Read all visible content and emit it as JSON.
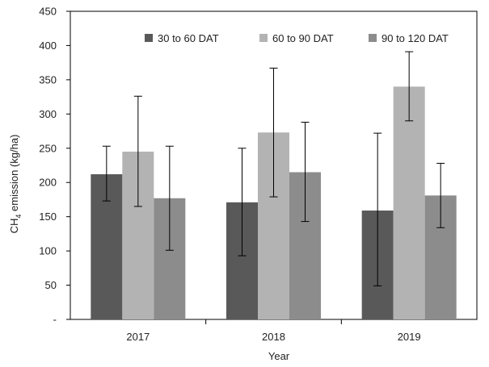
{
  "chart_data": {
    "type": "bar",
    "categories": [
      "2017",
      "2018",
      "2019"
    ],
    "series": [
      {
        "name": "30 to 60 DAT",
        "color": "#595959",
        "values": [
          212,
          171,
          159
        ],
        "error": [
          [
            173,
            253
          ],
          [
            93,
            250
          ],
          [
            49,
            272
          ]
        ]
      },
      {
        "name": "60 to 90 DAT",
        "color": "#b3b3b3",
        "values": [
          245,
          273,
          340
        ],
        "error": [
          [
            165,
            326
          ],
          [
            179,
            367
          ],
          [
            290,
            391
          ]
        ]
      },
      {
        "name": "90 to 120 DAT",
        "color": "#8c8c8c",
        "values": [
          177,
          215,
          181
        ],
        "error": [
          [
            101,
            253
          ],
          [
            143,
            288
          ],
          [
            134,
            228
          ]
        ]
      }
    ],
    "xlabel": "Year",
    "ylabel_main": "CH",
    "ylabel_sub": "4",
    "ylabel_rest": " emission (kg/ha)",
    "ylim": [
      0,
      450
    ],
    "yticks": [
      "-",
      "50",
      "100",
      "150",
      "200",
      "250",
      "300",
      "350",
      "400",
      "450"
    ],
    "grid": false,
    "legend_position": "top"
  }
}
